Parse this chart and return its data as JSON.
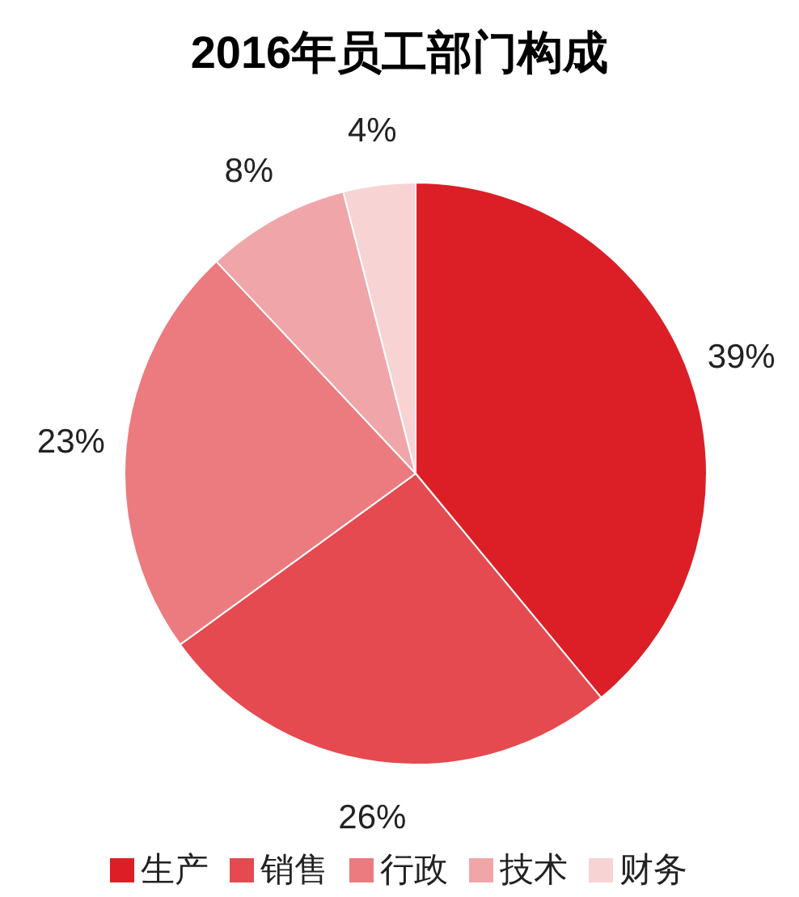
{
  "chart_data": {
    "type": "pie",
    "title": "2016年员工部门构成",
    "categories": [
      "生产",
      "销售",
      "行政",
      "技术",
      "财务"
    ],
    "values": [
      39,
      26,
      23,
      8,
      4
    ],
    "value_labels": [
      "39%",
      "26%",
      "23%",
      "8%",
      "4%"
    ],
    "colors": [
      "#dc1f26",
      "#e54a51",
      "#eb7b7f",
      "#f0a6a9",
      "#f8d3d4"
    ],
    "legend": "bottom"
  }
}
